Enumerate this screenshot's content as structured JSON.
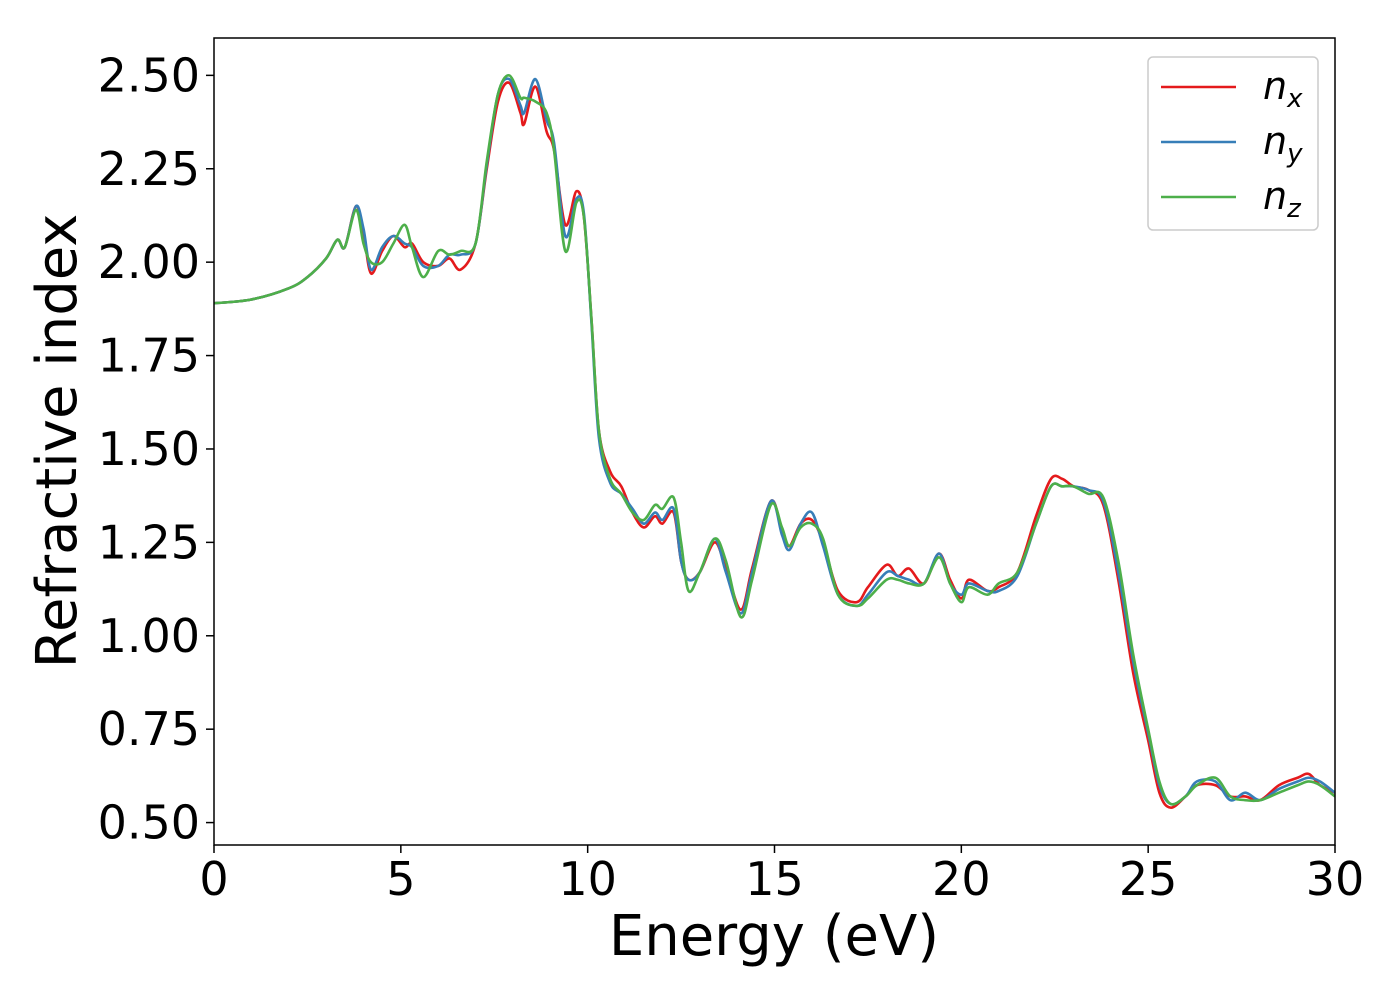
{
  "chart_data": {
    "type": "line",
    "xlabel": "Energy (eV)",
    "ylabel": "Refractive index",
    "x": [
      0,
      1,
      2,
      2.5,
      3,
      3.3,
      3.5,
      3.8,
      4,
      4.2,
      4.5,
      4.8,
      5.1,
      5.3,
      5.6,
      6,
      6.3,
      6.6,
      7,
      7.3,
      7.6,
      7.9,
      8.2,
      8.3,
      8.6,
      8.9,
      9.1,
      9.4,
      9.7,
      9.9,
      10.1,
      10.3,
      10.6,
      10.9,
      11.2,
      11.5,
      11.8,
      12,
      12.3,
      12.5,
      12.7,
      13,
      13.4,
      13.7,
      14.1,
      14.4,
      14.9,
      15.2,
      15.4,
      15.7,
      16,
      16.3,
      16.7,
      17.2,
      17.5,
      18,
      18.3,
      18.6,
      19,
      19.4,
      19.7,
      20,
      20.2,
      20.7,
      21,
      21.5,
      22,
      22.4,
      22.7,
      23,
      23.4,
      23.8,
      24.2,
      24.6,
      25,
      25.3,
      25.6,
      26,
      26.3,
      26.8,
      27.2,
      27.6,
      28,
      28.5,
      29,
      29.3,
      29.6,
      30
    ],
    "series": [
      {
        "name": "nx",
        "color": "#e41a1c",
        "values": [
          1.89,
          1.9,
          1.93,
          1.96,
          2.01,
          2.06,
          2.04,
          2.15,
          2.08,
          1.97,
          2.03,
          2.07,
          2.04,
          2.05,
          2.0,
          1.99,
          2.01,
          1.98,
          2.05,
          2.25,
          2.43,
          2.48,
          2.4,
          2.37,
          2.47,
          2.35,
          2.3,
          2.1,
          2.19,
          2.12,
          1.85,
          1.55,
          1.44,
          1.4,
          1.33,
          1.29,
          1.32,
          1.3,
          1.33,
          1.2,
          1.15,
          1.17,
          1.25,
          1.18,
          1.07,
          1.18,
          1.36,
          1.28,
          1.24,
          1.3,
          1.31,
          1.25,
          1.12,
          1.09,
          1.13,
          1.19,
          1.16,
          1.18,
          1.14,
          1.22,
          1.15,
          1.1,
          1.15,
          1.12,
          1.13,
          1.17,
          1.32,
          1.42,
          1.42,
          1.4,
          1.39,
          1.35,
          1.15,
          0.9,
          0.72,
          0.58,
          0.54,
          0.57,
          0.6,
          0.6,
          0.57,
          0.57,
          0.56,
          0.6,
          0.62,
          0.63,
          0.6,
          0.58
        ]
      },
      {
        "name": "ny",
        "color": "#377eb8",
        "values": [
          1.89,
          1.9,
          1.93,
          1.96,
          2.01,
          2.06,
          2.04,
          2.15,
          2.09,
          1.98,
          2.04,
          2.07,
          2.05,
          2.04,
          1.99,
          1.99,
          2.02,
          2.02,
          2.05,
          2.26,
          2.45,
          2.49,
          2.42,
          2.4,
          2.49,
          2.38,
          2.32,
          2.07,
          2.17,
          2.13,
          1.84,
          1.53,
          1.41,
          1.38,
          1.34,
          1.3,
          1.33,
          1.31,
          1.34,
          1.2,
          1.15,
          1.17,
          1.26,
          1.17,
          1.06,
          1.17,
          1.36,
          1.27,
          1.23,
          1.3,
          1.33,
          1.24,
          1.11,
          1.08,
          1.11,
          1.17,
          1.16,
          1.15,
          1.14,
          1.22,
          1.14,
          1.11,
          1.14,
          1.12,
          1.12,
          1.16,
          1.3,
          1.4,
          1.4,
          1.4,
          1.39,
          1.36,
          1.17,
          0.93,
          0.74,
          0.6,
          0.55,
          0.57,
          0.61,
          0.61,
          0.56,
          0.58,
          0.56,
          0.59,
          0.61,
          0.62,
          0.61,
          0.58
        ]
      },
      {
        "name": "nz",
        "color": "#4daf4a",
        "values": [
          1.89,
          1.9,
          1.93,
          1.96,
          2.01,
          2.06,
          2.04,
          2.14,
          2.05,
          2.0,
          2.0,
          2.05,
          2.1,
          2.04,
          1.96,
          2.03,
          2.02,
          2.03,
          2.05,
          2.27,
          2.45,
          2.5,
          2.44,
          2.44,
          2.43,
          2.4,
          2.3,
          2.03,
          2.16,
          2.12,
          1.85,
          1.55,
          1.42,
          1.38,
          1.33,
          1.31,
          1.35,
          1.34,
          1.37,
          1.25,
          1.12,
          1.17,
          1.26,
          1.2,
          1.05,
          1.15,
          1.35,
          1.29,
          1.24,
          1.29,
          1.3,
          1.26,
          1.11,
          1.08,
          1.1,
          1.15,
          1.15,
          1.14,
          1.14,
          1.21,
          1.14,
          1.09,
          1.13,
          1.11,
          1.14,
          1.17,
          1.3,
          1.4,
          1.4,
          1.4,
          1.38,
          1.37,
          1.2,
          0.95,
          0.75,
          0.61,
          0.55,
          0.57,
          0.6,
          0.62,
          0.57,
          0.56,
          0.56,
          0.58,
          0.6,
          0.61,
          0.6,
          0.57
        ]
      }
    ],
    "xlim": [
      0,
      30
    ],
    "xticks": [
      0,
      5,
      10,
      15,
      20,
      25,
      30
    ],
    "ylim": [
      0.44,
      2.6
    ],
    "yticks": [
      {
        "value": 0.5,
        "label": "0.50"
      },
      0.75,
      {
        "value": 1,
        "label": "1.00"
      },
      1.25,
      {
        "value": 1.5,
        "label": "1.50"
      },
      1.75,
      {
        "value": 2,
        "label": "2.00"
      },
      2.25,
      {
        "value": 2.5,
        "label": "2.50"
      }
    ],
    "legend": "upper right",
    "grid": false
  }
}
